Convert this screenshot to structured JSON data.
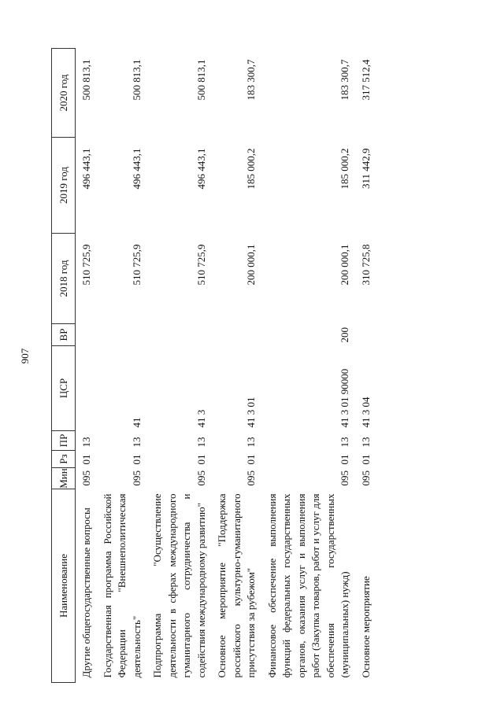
{
  "page_number": "907",
  "table": {
    "headers": [
      "Наименование",
      "Мин",
      "Рз",
      "ПР",
      "ЦСР",
      "ВР",
      "2018 год",
      "2019 год",
      "2020 год"
    ],
    "rows": [
      {
        "name": "Другие общегосударственные вопросы",
        "min": "095",
        "rz": "01",
        "pr": "13",
        "csr": "",
        "vr": "",
        "y2018": "510 725,9",
        "y2019": "496 443,1",
        "y2020": "500 813,1"
      },
      {
        "name": "Государственная программа Российской Федерации \"Внешнеполитическая деятельность\"",
        "min": "095",
        "rz": "01",
        "pr": "13",
        "csr": "41",
        "vr": "",
        "y2018": "510 725,9",
        "y2019": "496 443,1",
        "y2020": "500 813,1"
      },
      {
        "name": "Подпрограмма \"Осуществление деятельности в сферах международного гуманитарного сотрудничества и содействия международному развитию\"",
        "min": "095",
        "rz": "01",
        "pr": "13",
        "csr": "41 3",
        "vr": "",
        "y2018": "510 725,9",
        "y2019": "496 443,1",
        "y2020": "500 813,1"
      },
      {
        "name": "Основное мероприятие \"Поддержка российского культурно-гуманитарного присутствия за рубежом\"",
        "min": "095",
        "rz": "01",
        "pr": "13",
        "csr": "41 3 01",
        "vr": "",
        "y2018": "200 000,1",
        "y2019": "185 000,2",
        "y2020": "183 300,7"
      },
      {
        "name": "Финансовое обеспечение выполнения функций федеральных государственных органов, оказания услуг и выполнения работ (Закупка товаров, работ и услуг для обеспечения государственных (муниципальных) нужд)",
        "min": "095",
        "rz": "01",
        "pr": "13",
        "csr": "41 3 01 90000",
        "vr": "200",
        "y2018": "200 000,1",
        "y2019": "185 000,2",
        "y2020": "183 300,7"
      },
      {
        "name": "Основное мероприятие",
        "min": "095",
        "rz": "01",
        "pr": "13",
        "csr": "41 3 04",
        "vr": "",
        "y2018": "310 725,8",
        "y2019": "311 442,9",
        "y2020": "317 512,4"
      }
    ]
  }
}
